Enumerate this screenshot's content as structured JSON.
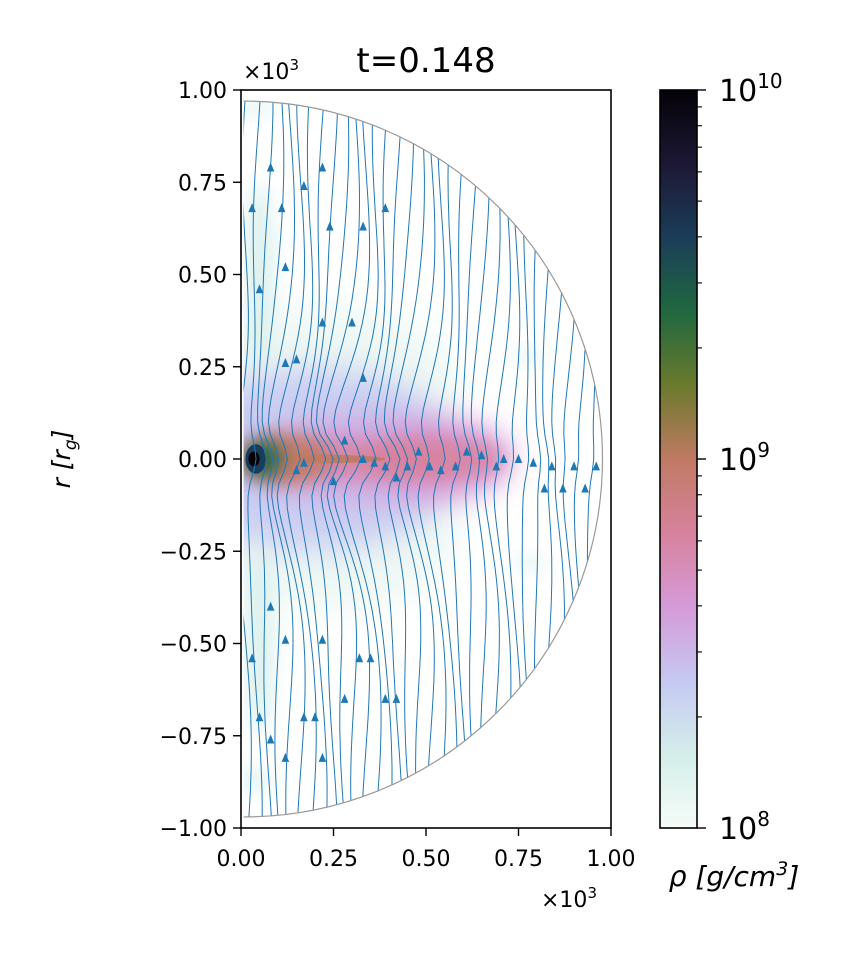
{
  "chart_data": {
    "type": "heatmap",
    "title": "t=0.148",
    "xlabel": "",
    "ylabel": "r [r_g]",
    "ylabel_parts": {
      "main": "r [r",
      "sub": "g",
      "close": "]"
    },
    "x_scale_label": "×10³",
    "y_scale_label": "×10³",
    "x_scale_parts": {
      "base": "×10",
      "exp": "3"
    },
    "y_scale_parts": {
      "base": "×10",
      "exp": "3"
    },
    "xlim": [
      0.0,
      1.0
    ],
    "ylim": [
      -1.0,
      1.0
    ],
    "xticks": [
      0.0,
      0.25,
      0.5,
      0.75,
      1.0
    ],
    "yticks": [
      -1.0,
      -0.75,
      -0.5,
      -0.25,
      0.0,
      0.25,
      0.5,
      0.75,
      1.0
    ],
    "xtick_labels": [
      "0.00",
      "0.25",
      "0.50",
      "0.75",
      "1.00"
    ],
    "ytick_labels": [
      "−1.00",
      "−0.75",
      "−0.50",
      "−0.25",
      "0.00",
      "0.25",
      "0.50",
      "0.75",
      "1.00"
    ],
    "domain_radius": 0.97,
    "colorbar": {
      "label": "ρ [g/cm³]",
      "label_parts": {
        "main": "ρ [g/cm",
        "exp": "3",
        "close": "]"
      },
      "scale": "log",
      "range": [
        100000000.0,
        10000000000.0
      ],
      "tick_labels": [
        {
          "value": 100000000.0,
          "base": "10",
          "exp": "8"
        },
        {
          "value": 1000000000.0,
          "base": "10",
          "exp": "9"
        },
        {
          "value": 10000000000.0,
          "base": "10",
          "exp": "10"
        }
      ],
      "stops": [
        "#f6fcf8",
        "#d4eeea",
        "#c5c8f2",
        "#d59ad8",
        "#d7829d",
        "#c07a63",
        "#6a7a2c",
        "#1f6840",
        "#1b3d59",
        "#1c1834",
        "#050208"
      ]
    },
    "density_structures": [
      {
        "name": "disk-midplane",
        "r_range": [
          0.0,
          0.72
        ],
        "theta_halfwidth_frac": 0.08,
        "log_rho": 8.95
      },
      {
        "name": "inner-torus",
        "center": [
          0.04,
          0.0
        ],
        "size": [
          0.05,
          0.08
        ],
        "log_rho": 9.9
      },
      {
        "name": "inflated-envelope",
        "r_range": [
          0.0,
          0.7
        ],
        "log_rho": 8.5
      }
    ],
    "streamlines": {
      "color": "#1f77b4",
      "count": 34,
      "description": "magnetic field lines, nearly vertical, pinched toward the midplane",
      "arrow_points": [
        [
          0.03,
          0.68
        ],
        [
          0.05,
          0.46
        ],
        [
          0.08,
          0.79
        ],
        [
          0.11,
          0.68
        ],
        [
          0.12,
          0.52
        ],
        [
          0.17,
          0.74
        ],
        [
          0.22,
          0.79
        ],
        [
          0.24,
          0.63
        ],
        [
          0.33,
          0.63
        ],
        [
          0.39,
          0.68
        ],
        [
          0.12,
          0.26
        ],
        [
          0.15,
          0.27
        ],
        [
          0.22,
          0.37
        ],
        [
          0.3,
          0.37
        ],
        [
          0.33,
          0.22
        ],
        [
          0.15,
          -0.03
        ],
        [
          0.17,
          -0.01
        ],
        [
          0.25,
          -0.06
        ],
        [
          0.28,
          0.05
        ],
        [
          0.33,
          0.0
        ],
        [
          0.36,
          -0.01
        ],
        [
          0.39,
          -0.02
        ],
        [
          0.42,
          -0.05
        ],
        [
          0.45,
          -0.02
        ],
        [
          0.48,
          0.02
        ],
        [
          0.51,
          -0.02
        ],
        [
          0.54,
          -0.03
        ],
        [
          0.58,
          -0.02
        ],
        [
          0.61,
          0.02
        ],
        [
          0.65,
          0.01
        ],
        [
          0.69,
          -0.02
        ],
        [
          0.71,
          0.0
        ],
        [
          0.75,
          0.0
        ],
        [
          0.79,
          -0.01
        ],
        [
          0.82,
          -0.08
        ],
        [
          0.84,
          -0.02
        ],
        [
          0.87,
          -0.08
        ],
        [
          0.9,
          -0.02
        ],
        [
          0.93,
          -0.08
        ],
        [
          0.96,
          -0.02
        ],
        [
          0.03,
          -0.54
        ],
        [
          0.08,
          -0.4
        ],
        [
          0.12,
          -0.49
        ],
        [
          0.22,
          -0.49
        ],
        [
          0.32,
          -0.54
        ],
        [
          0.35,
          -0.54
        ],
        [
          0.05,
          -0.7
        ],
        [
          0.08,
          -0.76
        ],
        [
          0.12,
          -0.81
        ],
        [
          0.17,
          -0.7
        ],
        [
          0.2,
          -0.7
        ],
        [
          0.28,
          -0.65
        ],
        [
          0.22,
          -0.81
        ],
        [
          0.39,
          -0.65
        ],
        [
          0.42,
          -0.65
        ]
      ]
    }
  }
}
